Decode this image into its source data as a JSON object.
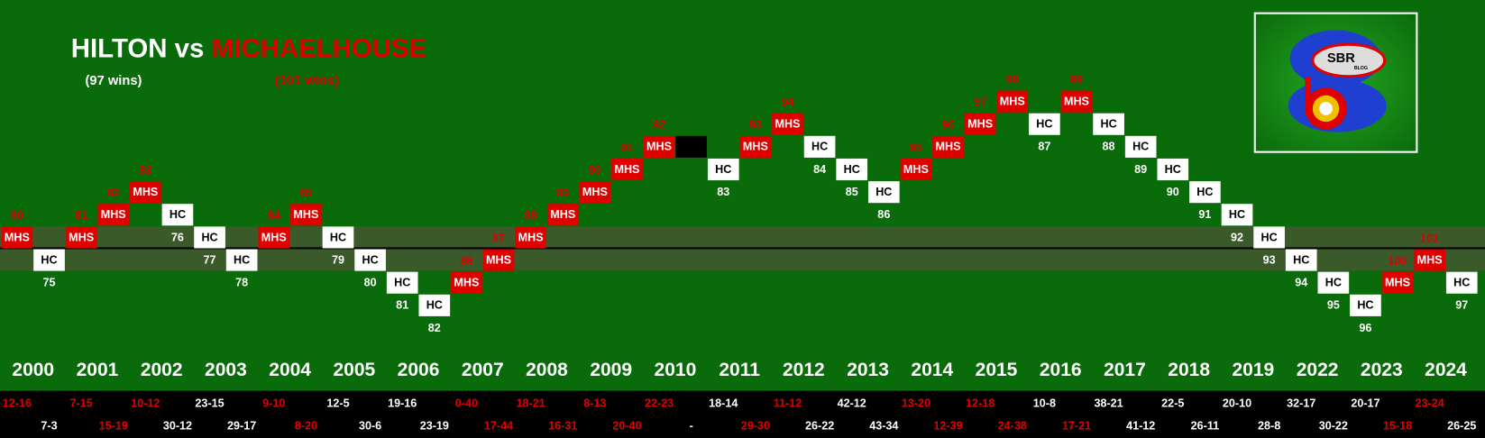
{
  "header": {
    "title_home": "HILTON",
    "title_vs": "vs",
    "title_away": "MICHAELHOUSE",
    "home_wins": "(97 wins)",
    "away_wins": "(101 wins)"
  },
  "logo": {
    "text": "SBR",
    "subtext": "BLOG"
  },
  "results": [
    {
      "team": "MHS",
      "wins": 80,
      "score": "12-16"
    },
    {
      "team": "HC",
      "wins": 75,
      "score": "7-3"
    },
    {
      "team": "MHS",
      "wins": 81,
      "score": "7-15"
    },
    {
      "team": "MHS",
      "wins": 82,
      "score": "15-19"
    },
    {
      "team": "MHS",
      "wins": 83,
      "score": "10-12"
    },
    {
      "team": "HC",
      "wins": 76,
      "score": "30-12"
    },
    {
      "team": "HC",
      "wins": 77,
      "score": "23-15"
    },
    {
      "team": "HC",
      "wins": 78,
      "score": "29-17"
    },
    {
      "team": "MHS",
      "wins": 84,
      "score": "9-10"
    },
    {
      "team": "MHS",
      "wins": 85,
      "score": "8-20"
    },
    {
      "team": "HC",
      "wins": 79,
      "score": "12-5"
    },
    {
      "team": "HC",
      "wins": 80,
      "score": "30-6"
    },
    {
      "team": "HC",
      "wins": 81,
      "score": "19-16"
    },
    {
      "team": "HC",
      "wins": 82,
      "score": "23-19"
    },
    {
      "team": "MHS",
      "wins": 86,
      "score": "0-40"
    },
    {
      "team": "MHS",
      "wins": 87,
      "score": "17-44"
    },
    {
      "team": "MHS",
      "wins": 88,
      "score": "18-21"
    },
    {
      "team": "MHS",
      "wins": 89,
      "score": "16-31"
    },
    {
      "team": "MHS",
      "wins": 90,
      "score": "8-13"
    },
    {
      "team": "MHS",
      "wins": 91,
      "score": "20-40"
    },
    {
      "team": "MHS",
      "wins": 92,
      "score": "22-23"
    },
    {
      "score": "-"
    },
    {
      "team": "HC",
      "wins": 83,
      "score": "18-14"
    },
    {
      "team": "MHS",
      "wins": 93,
      "score": "29-30"
    },
    {
      "team": "MHS",
      "wins": 94,
      "score": "11-12"
    },
    {
      "team": "HC",
      "wins": 84,
      "score": "26-22"
    },
    {
      "team": "HC",
      "wins": 85,
      "score": "42-12"
    },
    {
      "team": "HC",
      "wins": 86,
      "score": "43-34"
    },
    {
      "team": "MHS",
      "wins": 95,
      "score": "13-20"
    },
    {
      "team": "MHS",
      "wins": 96,
      "score": "12-39"
    },
    {
      "team": "MHS",
      "wins": 97,
      "score": "12-18"
    },
    {
      "team": "MHS",
      "wins": 98,
      "score": "24-38"
    },
    {
      "team": "HC",
      "wins": 87,
      "score": "10-8"
    },
    {
      "team": "MHS",
      "wins": 99,
      "score": "17-21"
    },
    {
      "team": "HC",
      "wins": 88,
      "score": "38-21"
    },
    {
      "team": "HC",
      "wins": 89,
      "score": "41-12"
    },
    {
      "team": "HC",
      "wins": 90,
      "score": "22-5"
    },
    {
      "team": "HC",
      "wins": 91,
      "score": "26-11"
    },
    {
      "team": "HC",
      "wins": 92,
      "score": "20-10"
    },
    {
      "team": "HC",
      "wins": 93,
      "score": "28-8"
    },
    {
      "team": "HC",
      "wins": 94,
      "score": "32-17"
    },
    {
      "team": "HC",
      "wins": 95,
      "score": "30-22"
    },
    {
      "team": "HC",
      "wins": 96,
      "score": "20-17"
    },
    {
      "team": "MHS",
      "wins": 100,
      "score": "15-18"
    },
    {
      "team": "MHS",
      "wins": 101,
      "score": "23-24"
    },
    {
      "team": "HC",
      "wins": 97,
      "score": "26-25"
    }
  ],
  "years": [
    "2000",
    "2001",
    "2002",
    "2003",
    "2004",
    "2005",
    "2006",
    "2007",
    "2008",
    "2009",
    "2010",
    "2011",
    "2012",
    "2013",
    "2014",
    "2015",
    "2016",
    "2017",
    "2018",
    "2019",
    "2022",
    "2023",
    "2024"
  ]
}
